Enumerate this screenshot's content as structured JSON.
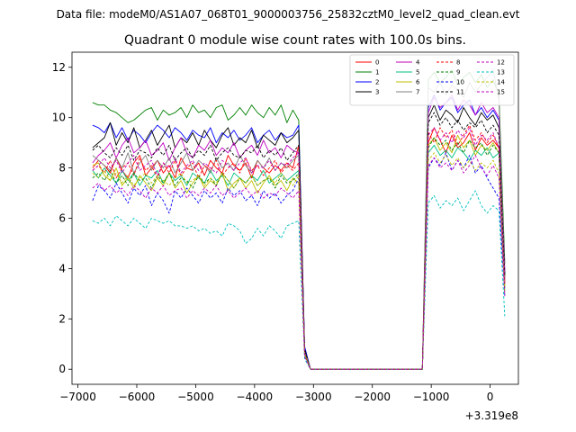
{
  "figure": {
    "suptitle": "Data file: modeM0/AS1A07_068T01_9000003756_25832cztM0_level2_quad_clean.evt"
  },
  "chart_data": {
    "type": "line",
    "title": "Quadrant 0 module wise count rates with 100.0s bins.",
    "xlabel": "",
    "ylabel": "",
    "x_offset_label": "+3.319e8",
    "xlim": [
      -7100,
      480
    ],
    "ylim": [
      -0.6,
      12.6
    ],
    "xticks": [
      -7000,
      -6000,
      -5000,
      -4000,
      -3000,
      -2000,
      -1000,
      0
    ],
    "xtick_labels": [
      "−7000",
      "−6000",
      "−5000",
      "−4000",
      "−3000",
      "−2000",
      "−1000",
      "0"
    ],
    "yticks": [
      0,
      2,
      4,
      6,
      8,
      10,
      12
    ],
    "ytick_labels": [
      "0",
      "2",
      "4",
      "6",
      "8",
      "10",
      "12"
    ],
    "grid": false,
    "legend_position": "upper-right",
    "legend_columns": 4,
    "x_start": -6750,
    "x_step": 100,
    "series": [
      {
        "name": "0",
        "color": "#ff0000",
        "style": "solid",
        "values": [
          8.0,
          8.3,
          8.1,
          7.8,
          8.4,
          7.9,
          7.6,
          8.2,
          8.5,
          7.7,
          8.0,
          8.3,
          7.8,
          8.1,
          7.6,
          8.4,
          8.0,
          7.9,
          8.2,
          7.7,
          8.3,
          8.0,
          7.8,
          8.5,
          8.1,
          7.9,
          8.2,
          7.6,
          8.3,
          8.0,
          7.8,
          8.1,
          7.9,
          8.2,
          8.0,
          8.9,
          0.6,
          0,
          0,
          0,
          0,
          0,
          0,
          0,
          0,
          0,
          0,
          0,
          0,
          0,
          0,
          0,
          0,
          0,
          0,
          0,
          0,
          9.0,
          9.6,
          9.1,
          8.6,
          9.3,
          8.8,
          9.0,
          9.4,
          8.7,
          9.2,
          8.9,
          9.1,
          8.8,
          3.5
        ]
      },
      {
        "name": "1",
        "color": "#008000",
        "style": "solid",
        "values": [
          10.6,
          10.5,
          10.5,
          10.3,
          10.2,
          10.0,
          9.8,
          9.9,
          10.1,
          10.3,
          10.4,
          9.9,
          10.3,
          10.1,
          10.2,
          10.4,
          10.0,
          10.5,
          10.2,
          10.3,
          10.0,
          10.4,
          10.5,
          9.9,
          10.1,
          10.4,
          10.1,
          10.5,
          10.2,
          10.0,
          10.4,
          10.1,
          10.5,
          9.8,
          10.3,
          9.9,
          0.8,
          0,
          0,
          0,
          0,
          0,
          0,
          0,
          0,
          0,
          0,
          0,
          0,
          0,
          0,
          0,
          0,
          0,
          0,
          0,
          0,
          11.5,
          11.8,
          11.4,
          11.6,
          11.9,
          11.3,
          11.6,
          11.8,
          11.4,
          11.7,
          11.2,
          11.5,
          10.9,
          4.2
        ]
      },
      {
        "name": "2",
        "color": "#0000ff",
        "style": "solid",
        "values": [
          9.7,
          9.6,
          9.4,
          9.8,
          9.2,
          9.6,
          9.1,
          9.5,
          9.3,
          9.0,
          9.4,
          9.7,
          9.5,
          9.2,
          9.6,
          9.4,
          9.1,
          9.5,
          9.3,
          9.2,
          9.6,
          9.0,
          9.4,
          9.2,
          9.5,
          9.1,
          9.3,
          9.6,
          9.0,
          9.3,
          9.5,
          9.1,
          9.4,
          9.2,
          9.3,
          9.7,
          0.9,
          0,
          0,
          0,
          0,
          0,
          0,
          0,
          0,
          0,
          0,
          0,
          0,
          0,
          0,
          0,
          0,
          0,
          0,
          0,
          0,
          10.4,
          10.9,
          10.3,
          10.6,
          10.8,
          10.2,
          10.5,
          10.7,
          10.1,
          10.4,
          10.0,
          10.3,
          9.9,
          3.8
        ]
      },
      {
        "name": "3",
        "color": "#000000",
        "style": "solid",
        "values": [
          8.8,
          9.0,
          9.2,
          9.8,
          8.9,
          9.4,
          9.0,
          9.6,
          8.8,
          9.1,
          9.5,
          8.9,
          9.3,
          9.7,
          8.8,
          9.2,
          9.0,
          9.4,
          8.9,
          9.5,
          9.1,
          8.8,
          9.3,
          9.6,
          8.9,
          9.2,
          9.0,
          9.5,
          8.8,
          9.3,
          9.1,
          8.9,
          9.4,
          9.0,
          9.2,
          9.5,
          0.8,
          0,
          0,
          0,
          0,
          0,
          0,
          0,
          0,
          0,
          0,
          0,
          0,
          0,
          0,
          0,
          0,
          0,
          0,
          0,
          0,
          10.0,
          10.5,
          9.9,
          10.3,
          10.1,
          9.8,
          10.4,
          10.0,
          9.7,
          10.2,
          9.9,
          10.1,
          9.6,
          3.7
        ]
      },
      {
        "name": "4",
        "color": "#bf00bf",
        "style": "solid",
        "values": [
          8.2,
          8.5,
          8.7,
          9.0,
          8.4,
          8.9,
          9.2,
          8.6,
          8.8,
          9.1,
          8.5,
          8.7,
          9.0,
          8.3,
          8.8,
          9.2,
          8.6,
          8.4,
          8.9,
          8.7,
          9.1,
          8.5,
          8.8,
          8.6,
          9.0,
          8.4,
          8.7,
          8.9,
          8.5,
          9.1,
          8.6,
          8.8,
          8.4,
          8.9,
          8.7,
          8.6,
          0.7,
          0,
          0,
          0,
          0,
          0,
          0,
          0,
          0,
          0,
          0,
          0,
          0,
          0,
          0,
          0,
          0,
          0,
          0,
          0,
          0,
          10.2,
          10.8,
          10.4,
          10.6,
          10.9,
          10.3,
          10.7,
          10.5,
          10.1,
          10.6,
          10.2,
          10.4,
          10.0,
          3.9
        ]
      },
      {
        "name": "5",
        "color": "#00bf80",
        "style": "solid",
        "values": [
          7.9,
          7.6,
          8.0,
          7.7,
          7.4,
          7.9,
          7.5,
          7.8,
          7.3,
          7.7,
          7.6,
          7.9,
          7.4,
          7.8,
          7.5,
          7.7,
          7.3,
          7.8,
          7.6,
          7.4,
          7.9,
          7.5,
          7.7,
          7.3,
          7.8,
          7.6,
          7.4,
          7.7,
          7.5,
          7.9,
          7.4,
          7.6,
          7.8,
          7.5,
          7.7,
          7.9,
          0.6,
          0,
          0,
          0,
          0,
          0,
          0,
          0,
          0,
          0,
          0,
          0,
          0,
          0,
          0,
          0,
          0,
          0,
          0,
          0,
          0,
          8.6,
          8.9,
          8.5,
          8.7,
          8.4,
          8.8,
          8.6,
          8.3,
          8.7,
          8.5,
          8.8,
          8.4,
          8.6,
          3.2
        ]
      },
      {
        "name": "6",
        "color": "#bfbf00",
        "style": "solid",
        "values": [
          8.1,
          8.2,
          7.7,
          7.5,
          8.0,
          7.3,
          7.6,
          7.2,
          7.7,
          7.4,
          7.1,
          7.6,
          7.3,
          7.8,
          7.2,
          7.5,
          7.0,
          7.4,
          7.7,
          7.2,
          7.5,
          7.3,
          7.8,
          7.1,
          7.4,
          7.6,
          7.2,
          7.5,
          7.0,
          7.4,
          7.7,
          7.3,
          7.5,
          7.1,
          7.6,
          7.4,
          0.6,
          0,
          0,
          0,
          0,
          0,
          0,
          0,
          0,
          0,
          0,
          0,
          0,
          0,
          0,
          0,
          0,
          0,
          0,
          0,
          0,
          8.9,
          9.2,
          8.7,
          9.0,
          8.6,
          9.3,
          8.8,
          9.1,
          8.5,
          8.9,
          8.7,
          9.0,
          8.6,
          3.3
        ]
      },
      {
        "name": "7",
        "color": "#808080",
        "style": "solid",
        "values": [
          8.5,
          8.3,
          8.1,
          7.9,
          8.4,
          8.0,
          8.6,
          7.8,
          8.2,
          8.5,
          7.9,
          8.3,
          8.0,
          8.4,
          7.8,
          8.2,
          8.6,
          7.9,
          8.3,
          8.1,
          7.8,
          8.4,
          8.0,
          8.2,
          7.9,
          8.5,
          8.1,
          7.8,
          8.3,
          8.0,
          8.4,
          7.9,
          8.2,
          8.0,
          8.3,
          8.5,
          0.7,
          0,
          0,
          0,
          0,
          0,
          0,
          0,
          0,
          0,
          0,
          0,
          0,
          0,
          0,
          0,
          0,
          0,
          0,
          0,
          0,
          11.2,
          11.0,
          11.4,
          10.9,
          11.3,
          11.1,
          10.8,
          11.4,
          11.0,
          11.3,
          11.6,
          11.9,
          10.7,
          3.6
        ]
      },
      {
        "name": "8",
        "color": "#ff0000",
        "style": "dashed",
        "values": [
          7.9,
          8.1,
          7.8,
          8.3,
          7.6,
          8.0,
          8.2,
          7.7,
          8.4,
          7.9,
          8.1,
          7.6,
          8.2,
          7.8,
          8.3,
          7.7,
          8.0,
          8.2,
          7.6,
          8.1,
          7.9,
          8.3,
          7.7,
          8.0,
          8.2,
          7.8,
          8.4,
          7.9,
          8.1,
          7.7,
          8.0,
          8.3,
          7.8,
          8.1,
          7.9,
          8.2,
          0.6,
          0,
          0,
          0,
          0,
          0,
          0,
          0,
          0,
          0,
          0,
          0,
          0,
          0,
          0,
          0,
          0,
          0,
          0,
          0,
          0,
          9.4,
          9.0,
          9.6,
          9.2,
          9.5,
          8.9,
          9.3,
          9.7,
          9.1,
          9.4,
          9.0,
          9.3,
          8.8,
          3.4
        ]
      },
      {
        "name": "9",
        "color": "#008000",
        "style": "dashed",
        "values": [
          7.6,
          7.8,
          7.5,
          7.9,
          7.4,
          7.7,
          7.3,
          7.8,
          7.5,
          7.6,
          7.2,
          7.7,
          7.4,
          7.8,
          7.3,
          7.6,
          7.5,
          7.2,
          7.7,
          7.4,
          7.6,
          7.3,
          7.8,
          7.5,
          7.2,
          7.6,
          7.4,
          7.7,
          7.3,
          7.5,
          7.6,
          7.2,
          7.7,
          7.4,
          7.5,
          7.8,
          0.6,
          0,
          0,
          0,
          0,
          0,
          0,
          0,
          0,
          0,
          0,
          0,
          0,
          0,
          0,
          0,
          0,
          0,
          0,
          0,
          0,
          8.8,
          9.2,
          8.9,
          9.1,
          8.7,
          9.0,
          8.6,
          9.1,
          8.8,
          9.0,
          8.5,
          8.9,
          8.6,
          3.1
        ]
      },
      {
        "name": "10",
        "color": "#0000ff",
        "style": "dashed",
        "values": [
          6.7,
          7.3,
          7.1,
          6.8,
          7.4,
          7.0,
          6.6,
          7.2,
          6.9,
          7.3,
          6.5,
          7.0,
          6.7,
          6.2,
          7.1,
          6.8,
          7.2,
          6.9,
          6.6,
          7.1,
          6.8,
          7.0,
          6.6,
          7.2,
          6.9,
          7.1,
          6.7,
          6.9,
          6.5,
          7.1,
          6.8,
          7.0,
          6.6,
          6.9,
          7.1,
          7.6,
          0.5,
          0,
          0,
          0,
          0,
          0,
          0,
          0,
          0,
          0,
          0,
          0,
          0,
          0,
          0,
          0,
          0,
          0,
          0,
          0,
          0,
          8.0,
          8.4,
          8.1,
          8.6,
          7.9,
          8.3,
          8.0,
          8.5,
          7.8,
          8.1,
          7.6,
          7.2,
          6.8,
          2.9
        ]
      },
      {
        "name": "11",
        "color": "#000000",
        "style": "dashed",
        "values": [
          8.7,
          8.9,
          8.6,
          8.4,
          8.8,
          8.5,
          8.9,
          8.3,
          8.7,
          8.6,
          8.4,
          8.8,
          8.5,
          8.9,
          8.3,
          8.6,
          8.8,
          8.4,
          8.7,
          8.5,
          8.9,
          8.3,
          8.6,
          8.8,
          8.5,
          8.4,
          8.7,
          8.6,
          8.9,
          8.4,
          8.7,
          8.5,
          8.8,
          8.3,
          8.6,
          8.9,
          0.7,
          0,
          0,
          0,
          0,
          0,
          0,
          0,
          0,
          0,
          0,
          0,
          0,
          0,
          0,
          0,
          0,
          0,
          0,
          0,
          0,
          9.8,
          10.2,
          9.7,
          10.0,
          9.6,
          9.9,
          9.5,
          9.8,
          9.6,
          9.9,
          9.4,
          9.7,
          9.3,
          3.7
        ]
      },
      {
        "name": "12",
        "color": "#bf00bf",
        "style": "dashed",
        "values": [
          7.9,
          8.1,
          8.4,
          8.0,
          8.3,
          7.8,
          8.2,
          8.5,
          7.9,
          8.1,
          8.3,
          7.7,
          8.2,
          8.0,
          8.4,
          7.8,
          8.1,
          8.3,
          7.9,
          8.2,
          8.0,
          7.8,
          8.3,
          8.1,
          7.9,
          8.2,
          8.4,
          7.8,
          8.1,
          8.0,
          8.3,
          7.9,
          8.2,
          8.1,
          8.4,
          8.6,
          0.6,
          0,
          0,
          0,
          0,
          0,
          0,
          0,
          0,
          0,
          0,
          0,
          0,
          0,
          0,
          0,
          0,
          0,
          0,
          0,
          0,
          9.3,
          9.6,
          9.1,
          9.4,
          9.0,
          9.5,
          9.2,
          9.6,
          8.9,
          9.3,
          9.1,
          9.4,
          8.8,
          3.4
        ]
      },
      {
        "name": "13",
        "color": "#00bfbf",
        "style": "dashed",
        "values": [
          5.9,
          5.8,
          6.0,
          5.7,
          6.1,
          5.9,
          5.7,
          6.0,
          5.8,
          5.6,
          6.0,
          5.9,
          5.8,
          5.9,
          5.7,
          5.7,
          5.6,
          5.7,
          5.5,
          5.6,
          5.4,
          5.5,
          5.3,
          5.8,
          5.7,
          5.5,
          5.0,
          5.2,
          5.6,
          5.3,
          5.7,
          5.5,
          5.2,
          5.7,
          5.8,
          5.9,
          0.4,
          0,
          0,
          0,
          0,
          0,
          0,
          0,
          0,
          0,
          0,
          0,
          0,
          0,
          0,
          0,
          0,
          0,
          0,
          0,
          0,
          6.6,
          6.9,
          6.4,
          6.7,
          6.5,
          6.8,
          6.3,
          6.7,
          7.1,
          6.5,
          6.2,
          6.5,
          6.3,
          2.1
        ]
      },
      {
        "name": "14",
        "color": "#bfbf00",
        "style": "dashed",
        "values": [
          7.8,
          7.6,
          7.9,
          7.5,
          7.8,
          7.4,
          7.7,
          7.3,
          7.6,
          7.8,
          7.4,
          7.7,
          7.5,
          7.3,
          7.6,
          7.8,
          7.4,
          7.5,
          7.7,
          7.3,
          7.6,
          7.4,
          7.8,
          7.5,
          7.2,
          7.6,
          7.4,
          7.7,
          7.3,
          7.5,
          7.6,
          7.4,
          7.8,
          7.5,
          7.3,
          7.7,
          0.6,
          0,
          0,
          0,
          0,
          0,
          0,
          0,
          0,
          0,
          0,
          0,
          0,
          0,
          0,
          0,
          0,
          0,
          0,
          0,
          0,
          8.3,
          8.6,
          8.2,
          8.5,
          8.1,
          8.4,
          8.0,
          8.3,
          7.9,
          8.2,
          8.0,
          8.3,
          7.8,
          3.0
        ]
      },
      {
        "name": "15",
        "color": "#bf00bf",
        "style": "dashed",
        "values": [
          7.2,
          7.4,
          7.1,
          7.3,
          7.0,
          7.2,
          6.9,
          7.3,
          7.1,
          6.8,
          7.2,
          7.0,
          7.3,
          6.9,
          7.1,
          7.2,
          6.8,
          7.1,
          6.9,
          7.2,
          7.0,
          7.3,
          6.9,
          7.1,
          6.8,
          7.0,
          7.2,
          6.9,
          7.1,
          6.8,
          7.0,
          6.9,
          7.2,
          7.0,
          6.8,
          7.1,
          0.5,
          0,
          0,
          0,
          0,
          0,
          0,
          0,
          0,
          0,
          0,
          0,
          0,
          0,
          0,
          0,
          0,
          0,
          0,
          0,
          0,
          8.1,
          8.4,
          8.0,
          8.2,
          7.9,
          8.3,
          7.8,
          8.1,
          8.5,
          8.0,
          7.7,
          8.1,
          7.6,
          2.9
        ]
      }
    ]
  }
}
